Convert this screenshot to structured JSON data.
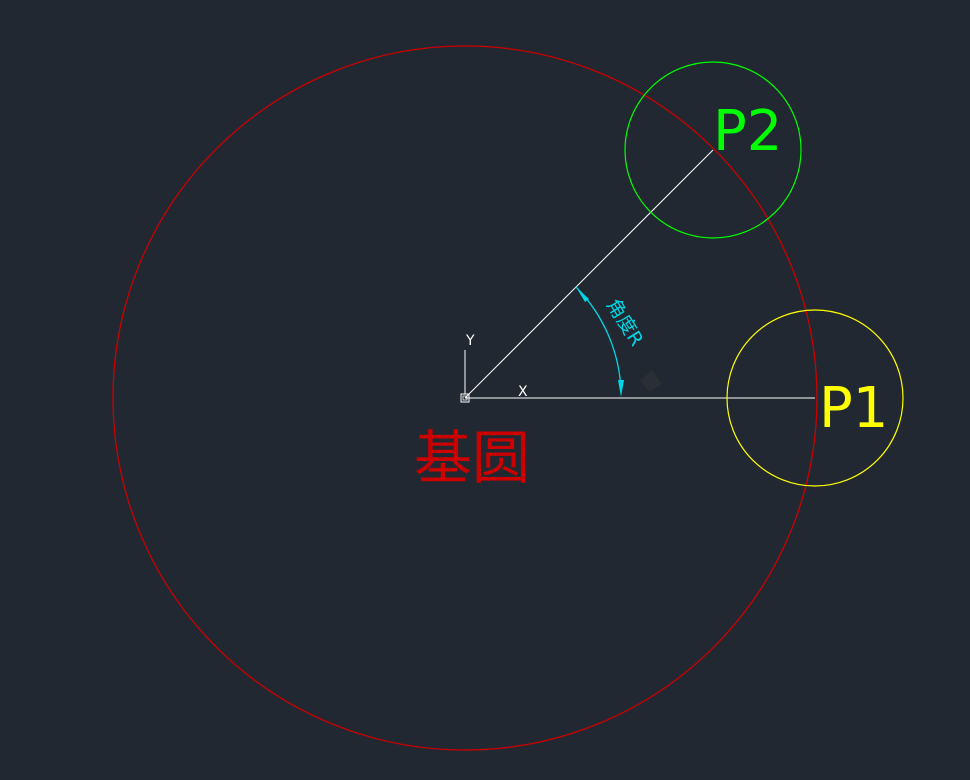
{
  "colors": {
    "background": "#222831",
    "base_circle": "#cc0000",
    "p1": "#ffff00",
    "p2": "#00ff00",
    "lines": "#ffffff",
    "angle_dimension": "#00d7e6",
    "ucs": "#ffffff"
  },
  "labels": {
    "p1": "P1",
    "p2": "P2",
    "base_circle": "基圆",
    "angle": "角度R"
  },
  "ucs": {
    "x_label": "X",
    "y_label": "Y"
  }
}
